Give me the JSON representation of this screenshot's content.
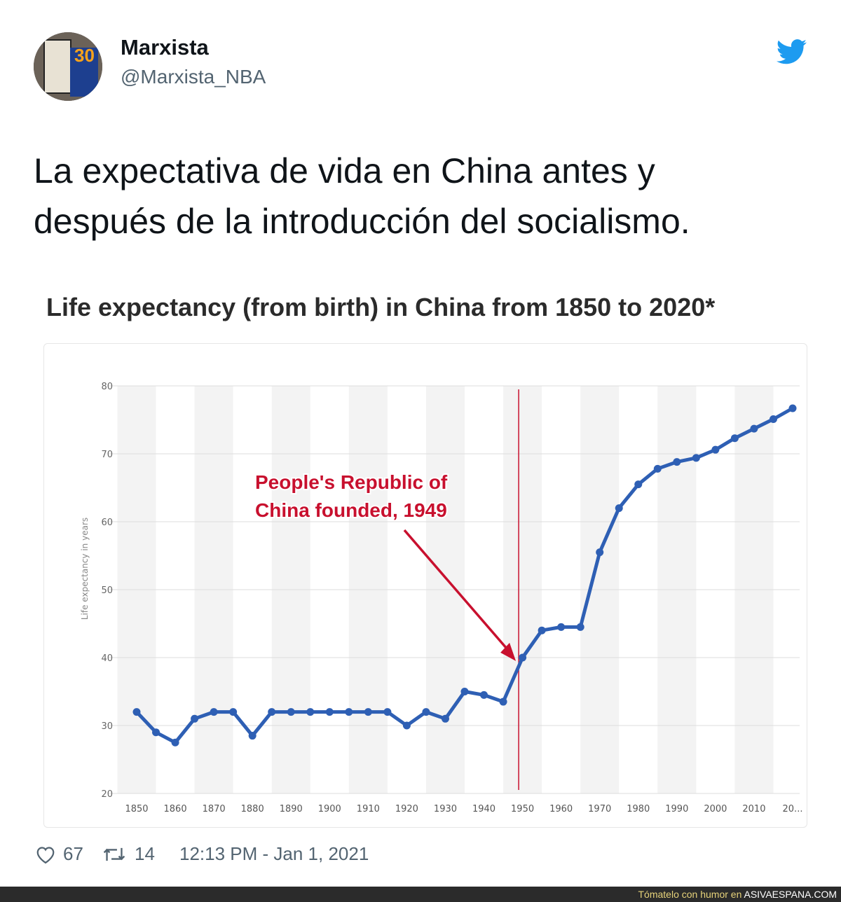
{
  "tweet": {
    "author_name": "Marxista",
    "handle": "@Marxista_NBA",
    "avatar_number": "30",
    "text_line1": "La expectativa de vida en China antes y",
    "text_line2": "después de la introducción del socialismo.",
    "likes": "67",
    "retweets": "14",
    "timestamp": "12:13 PM - Jan 1, 2021"
  },
  "icons": {
    "brand": "twitter-bird-icon",
    "like": "heart-icon",
    "retweet": "retweet-icon"
  },
  "colors": {
    "twitter_blue": "#1d9bf0",
    "line": "#2e5fb4",
    "annotation": "#c8102e"
  },
  "watermark": {
    "prefix": "Tómatelo con humor en",
    "site": "ASIVAESPANA.COM"
  },
  "chart_data": {
    "type": "line",
    "title": "Life expectancy (from birth) in China from 1850 to 2020*",
    "ylabel": "Life expectancy in years",
    "ylim": [
      20,
      80
    ],
    "yticks": [
      20,
      30,
      40,
      50,
      60,
      70,
      80
    ],
    "xtick_labels": [
      "1850",
      "1860",
      "1870",
      "1880",
      "1890",
      "1900",
      "1910",
      "1920",
      "1930",
      "1940",
      "1950",
      "1960",
      "1970",
      "1980",
      "1990",
      "2000",
      "2010",
      "20..."
    ],
    "x": [
      1850,
      1855,
      1860,
      1865,
      1870,
      1875,
      1880,
      1885,
      1890,
      1895,
      1900,
      1905,
      1910,
      1915,
      1920,
      1925,
      1930,
      1935,
      1940,
      1945,
      1950,
      1955,
      1960,
      1965,
      1970,
      1975,
      1980,
      1985,
      1990,
      1995,
      2000,
      2005,
      2010,
      2015,
      2020
    ],
    "series": [
      {
        "values": [
          32,
          29,
          27.5,
          31,
          32,
          32,
          28.5,
          32,
          32,
          32,
          32,
          32,
          32,
          32,
          30,
          32,
          31,
          35,
          34.5,
          33.5,
          40,
          44,
          44.5,
          44.5,
          55.5,
          62,
          65.5,
          67.8,
          68.8,
          69.4,
          70.6,
          72.3,
          73.7,
          75.1,
          76.7
        ]
      }
    ],
    "annotation": {
      "text_line1": "People's Republic of",
      "text_line2": "China founded, 1949",
      "x": 1949
    },
    "grid": true
  }
}
